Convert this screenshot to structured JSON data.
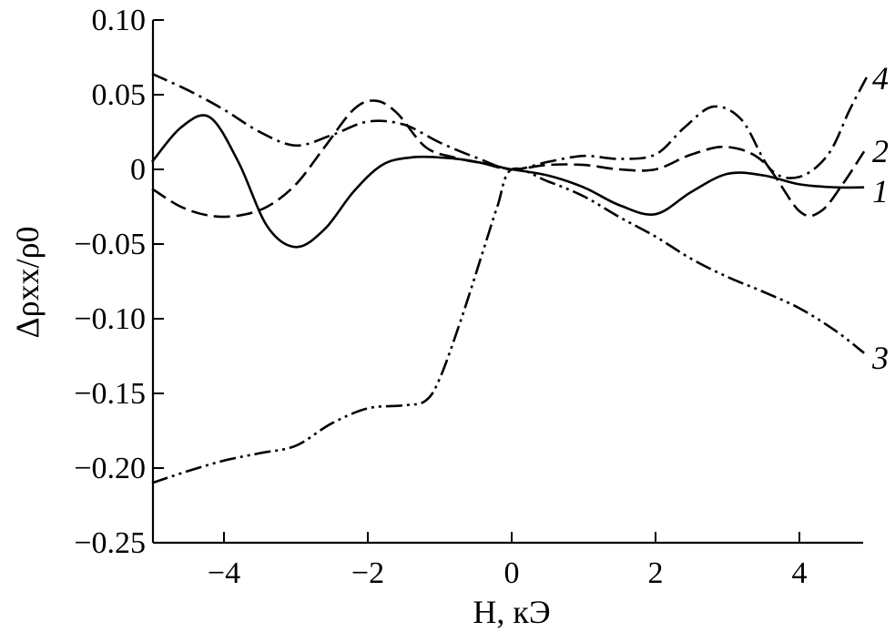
{
  "chart_data": {
    "type": "line",
    "xlabel": "H, кЭ",
    "ylabel": "Δρxx/ρ0",
    "xlim": [
      -5,
      5
    ],
    "ylim": [
      -0.25,
      0.1
    ],
    "x_ticks": [
      -4,
      -2,
      0,
      2,
      4
    ],
    "x_tick_labels": [
      "−4",
      "−2",
      "0",
      "2",
      "4"
    ],
    "y_ticks": [
      0.1,
      0.05,
      0,
      -0.05,
      -0.1,
      -0.15,
      -0.2,
      -0.25
    ],
    "y_tick_labels": [
      "0.10",
      "0.05",
      "0",
      "−0.05",
      "−0.10",
      "−0.15",
      "−0.20",
      "−0.25"
    ],
    "grid": false,
    "legend": "inline labels at right end",
    "series": [
      {
        "name": "1",
        "line_style": "solid",
        "x": [
          -5,
          -4.6,
          -4.2,
          -3.8,
          -3.4,
          -3.0,
          -2.6,
          -2.2,
          -1.8,
          -1.4,
          -1.0,
          -0.6,
          -0.2,
          0,
          0.5,
          1.0,
          1.5,
          2.0,
          2.5,
          3.0,
          3.5,
          4.0,
          4.5,
          4.9
        ],
        "y": [
          0.005,
          0.028,
          0.035,
          0.005,
          -0.038,
          -0.052,
          -0.04,
          -0.015,
          0.003,
          0.008,
          0.008,
          0.006,
          0.002,
          0.0,
          -0.004,
          -0.012,
          -0.024,
          -0.03,
          -0.015,
          -0.003,
          -0.004,
          -0.01,
          -0.012,
          -0.012
        ]
      },
      {
        "name": "2",
        "line_style": "dashed",
        "x": [
          -5,
          -4.6,
          -4.2,
          -3.8,
          -3.4,
          -3.0,
          -2.6,
          -2.2,
          -1.9,
          -1.6,
          -1.2,
          -0.8,
          -0.4,
          0,
          0.5,
          1.0,
          1.5,
          2.0,
          2.5,
          3.0,
          3.5,
          4.0,
          4.3,
          4.6,
          4.9
        ],
        "y": [
          -0.013,
          -0.025,
          -0.031,
          -0.031,
          -0.025,
          -0.01,
          0.015,
          0.04,
          0.046,
          0.038,
          0.015,
          0.008,
          0.004,
          0.0,
          0.003,
          0.003,
          0.0,
          0.0,
          0.01,
          0.015,
          0.005,
          -0.028,
          -0.028,
          -0.01,
          0.012
        ]
      },
      {
        "name": "3",
        "line_style": "dash-dot-dot",
        "x": [
          -5,
          -4.5,
          -4,
          -3.5,
          -3,
          -2.5,
          -2,
          -1.5,
          -1.2,
          -1.0,
          -0.7,
          -0.4,
          -0.2,
          0,
          0.5,
          1.0,
          1.5,
          2.0,
          2.5,
          3.0,
          3.5,
          4.0,
          4.5,
          4.9
        ],
        "y": [
          -0.21,
          -0.202,
          -0.195,
          -0.19,
          -0.185,
          -0.17,
          -0.16,
          -0.158,
          -0.155,
          -0.14,
          -0.1,
          -0.055,
          -0.025,
          0.0,
          -0.008,
          -0.018,
          -0.032,
          -0.045,
          -0.06,
          -0.072,
          -0.082,
          -0.093,
          -0.108,
          -0.123
        ]
      },
      {
        "name": "4",
        "line_style": "dash-dot",
        "x": [
          -5,
          -4.5,
          -4,
          -3.5,
          -3,
          -2.5,
          -2,
          -1.5,
          -1.0,
          -0.5,
          0,
          0.5,
          1.0,
          1.5,
          2.0,
          2.4,
          2.8,
          3.2,
          3.6,
          4.0,
          4.4,
          4.7,
          4.95
        ],
        "y": [
          0.064,
          0.053,
          0.04,
          0.025,
          0.016,
          0.023,
          0.032,
          0.03,
          0.018,
          0.008,
          0.0,
          0.005,
          0.009,
          0.007,
          0.01,
          0.028,
          0.042,
          0.033,
          0.0,
          -0.005,
          0.01,
          0.04,
          0.063
        ]
      }
    ]
  }
}
